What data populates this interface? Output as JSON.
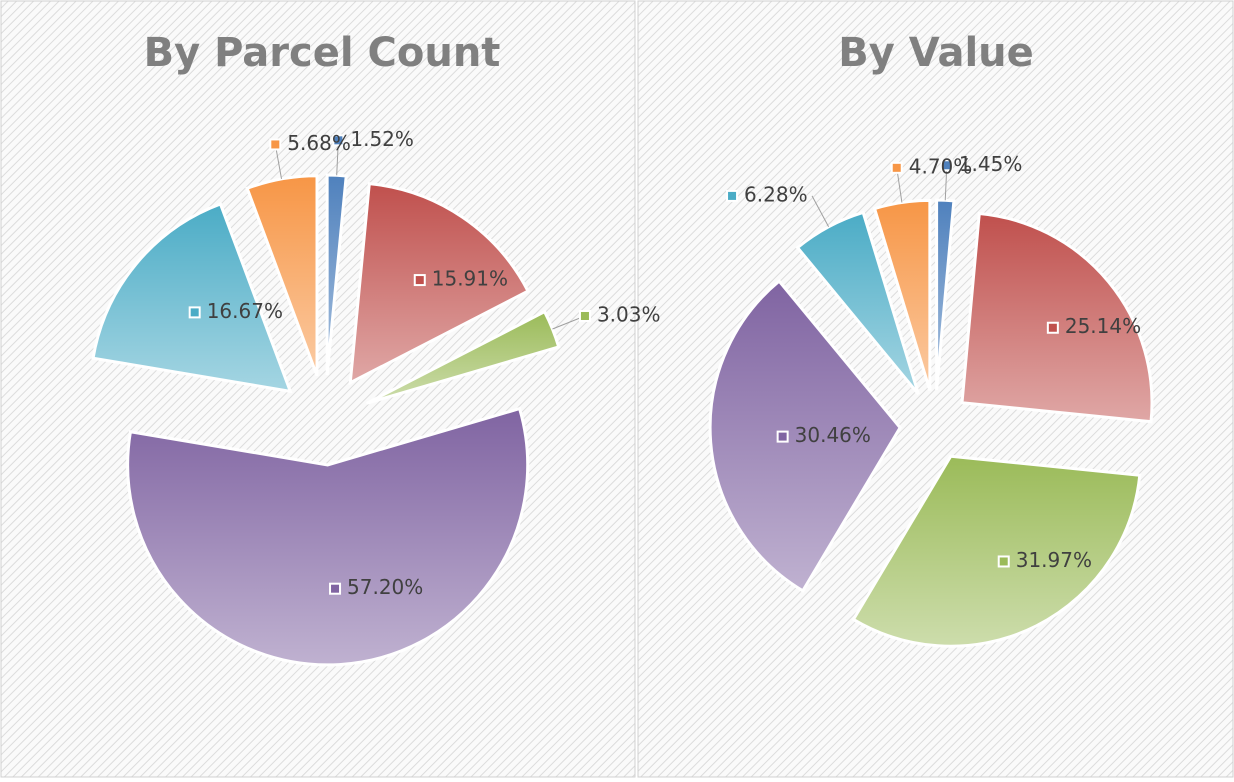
{
  "chart_data": [
    {
      "type": "pie",
      "title": "By Parcel Count",
      "values": [
        1.52,
        15.91,
        3.03,
        57.2,
        16.67,
        5.68
      ],
      "value_labels": [
        "1.52%",
        "15.91%",
        "3.03%",
        "57.20%",
        "16.67%",
        "5.68%"
      ],
      "colors": [
        "#4f81bd",
        "#c0504d",
        "#9bbb59",
        "#8064a2",
        "#4bacc6",
        "#f79646"
      ]
    },
    {
      "type": "pie",
      "title": "By Value",
      "values": [
        1.45,
        25.14,
        31.97,
        30.46,
        6.28,
        4.7
      ],
      "value_labels": [
        "1.45%",
        "25.14%",
        "31.97%",
        "30.46%",
        "6.28%",
        "4.70%"
      ],
      "colors": [
        "#4f81bd",
        "#c0504d",
        "#9bbb59",
        "#8064a2",
        "#4bacc6",
        "#f79646"
      ]
    }
  ]
}
